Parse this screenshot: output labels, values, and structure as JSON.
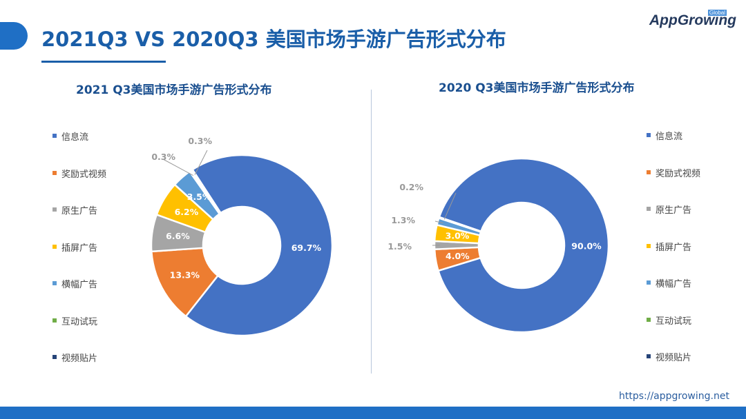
{
  "header": {
    "title": "2021Q3 VS 2020Q3 美国市场手游广告形式分布",
    "logo": "AppGrowing",
    "logo_badge": "Global"
  },
  "footer": {
    "url": "https://appgrowing.net"
  },
  "colors": [
    "#4472c4",
    "#ed7d31",
    "#a5a5a5",
    "#ffc000",
    "#5b9bd5",
    "#70ad47",
    "#264478"
  ],
  "chart_data": [
    {
      "type": "pie",
      "subtitle": "2021 Q3美国市场手游广告形式分布",
      "donut": true,
      "categories": [
        "信息流",
        "奖励式视频",
        "原生广告",
        "插屏广告",
        "横幅广告",
        "互动试玩",
        "视频贴片"
      ],
      "values": [
        69.7,
        13.3,
        6.6,
        6.2,
        3.5,
        0.3,
        0.3
      ],
      "labels": [
        "69.7%",
        "13.3%",
        "6.6%",
        "6.2%",
        "3.5%",
        "0.3%",
        "0.3%"
      ],
      "legend": "left"
    },
    {
      "type": "pie",
      "subtitle": "2020 Q3美国市场手游广告形式分布",
      "donut": true,
      "categories": [
        "信息流",
        "奖励式视频",
        "原生广告",
        "插屏广告",
        "横幅广告",
        "互动试玩",
        "视频贴片"
      ],
      "values": [
        90.0,
        4.0,
        1.5,
        3.0,
        1.3,
        0.2,
        0
      ],
      "labels": [
        "90.0%",
        "4.0%",
        "1.5%",
        "3.0%",
        "1.3%",
        "0.2%",
        ""
      ],
      "legend": "right"
    }
  ]
}
